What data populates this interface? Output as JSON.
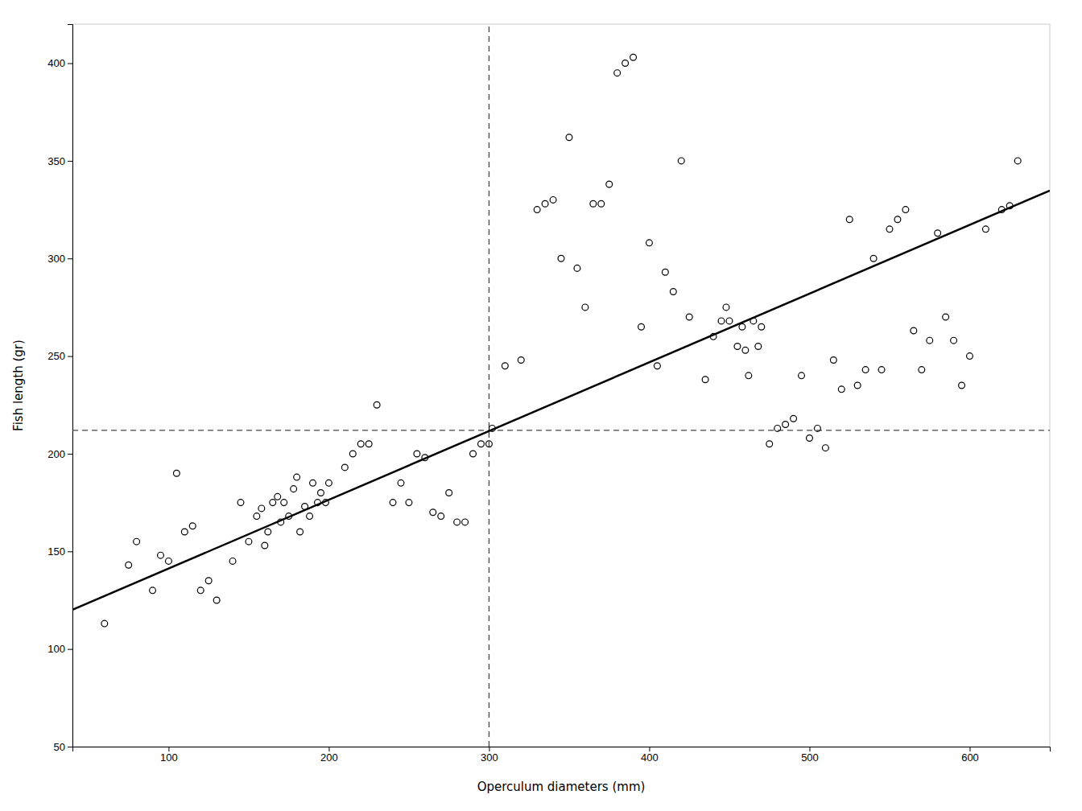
{
  "chart_data": {
    "type": "scatter",
    "xlabel": "Operculum diameters (mm)",
    "ylabel": "Fish length (gr)",
    "xlim": [
      40,
      650
    ],
    "ylim": [
      50,
      420
    ],
    "xticks": [
      100,
      200,
      300,
      400,
      500,
      600
    ],
    "yticks": [
      50,
      100,
      150,
      200,
      250,
      300,
      350,
      400
    ],
    "grid": false,
    "series": [
      {
        "type": "scatter",
        "marker": "circle",
        "color": "#000000",
        "x": [
          60,
          75,
          80,
          90,
          95,
          100,
          105,
          110,
          115,
          120,
          125,
          130,
          140,
          145,
          150,
          155,
          158,
          160,
          162,
          165,
          168,
          170,
          172,
          175,
          178,
          180,
          182,
          185,
          188,
          190,
          193,
          195,
          198,
          200,
          210,
          215,
          220,
          225,
          230,
          240,
          245,
          250,
          255,
          260,
          265,
          270,
          275,
          280,
          285,
          290,
          295,
          300,
          302,
          310,
          320,
          330,
          335,
          340,
          345,
          350,
          355,
          360,
          365,
          370,
          375,
          380,
          385,
          390,
          395,
          400,
          405,
          410,
          415,
          420,
          425,
          435,
          440,
          445,
          448,
          450,
          455,
          458,
          460,
          462,
          465,
          468,
          470,
          475,
          480,
          485,
          490,
          495,
          500,
          505,
          510,
          515,
          520,
          525,
          530,
          535,
          540,
          545,
          550,
          555,
          560,
          565,
          570,
          575,
          580,
          585,
          590,
          595,
          600,
          610,
          620,
          625,
          630
        ],
        "values": [
          113,
          143,
          155,
          130,
          148,
          145,
          190,
          160,
          163,
          130,
          135,
          125,
          145,
          175,
          155,
          168,
          172,
          153,
          160,
          175,
          178,
          165,
          175,
          168,
          182,
          188,
          160,
          173,
          168,
          185,
          175,
          180,
          175,
          185,
          193,
          200,
          205,
          205,
          225,
          175,
          185,
          175,
          200,
          198,
          170,
          168,
          180,
          165,
          165,
          200,
          205,
          205,
          213,
          245,
          248,
          325,
          328,
          330,
          300,
          362,
          295,
          275,
          328,
          328,
          338,
          395,
          400,
          403,
          265,
          308,
          245,
          293,
          283,
          350,
          270,
          238,
          260,
          268,
          275,
          268,
          255,
          265,
          253,
          240,
          268,
          255,
          265,
          205,
          213,
          215,
          218,
          240,
          208,
          213,
          203,
          248,
          233,
          320,
          235,
          243,
          300,
          243,
          315,
          320,
          325,
          263,
          243,
          258,
          313,
          270,
          258,
          235,
          250,
          315,
          325,
          327,
          350
        ]
      },
      {
        "type": "line",
        "line_style": "solid",
        "color": "#000000",
        "x": [
          40,
          650
        ],
        "values": [
          120.08,
          334.8
        ]
      },
      {
        "type": "line",
        "line_style": "dashed",
        "color": "#444444",
        "x": [
          300,
          300
        ],
        "values": [
          50,
          420
        ]
      },
      {
        "type": "line",
        "line_style": "dashed",
        "color": "#444444",
        "x": [
          40,
          650
        ],
        "values": [
          212,
          212
        ]
      }
    ]
  }
}
